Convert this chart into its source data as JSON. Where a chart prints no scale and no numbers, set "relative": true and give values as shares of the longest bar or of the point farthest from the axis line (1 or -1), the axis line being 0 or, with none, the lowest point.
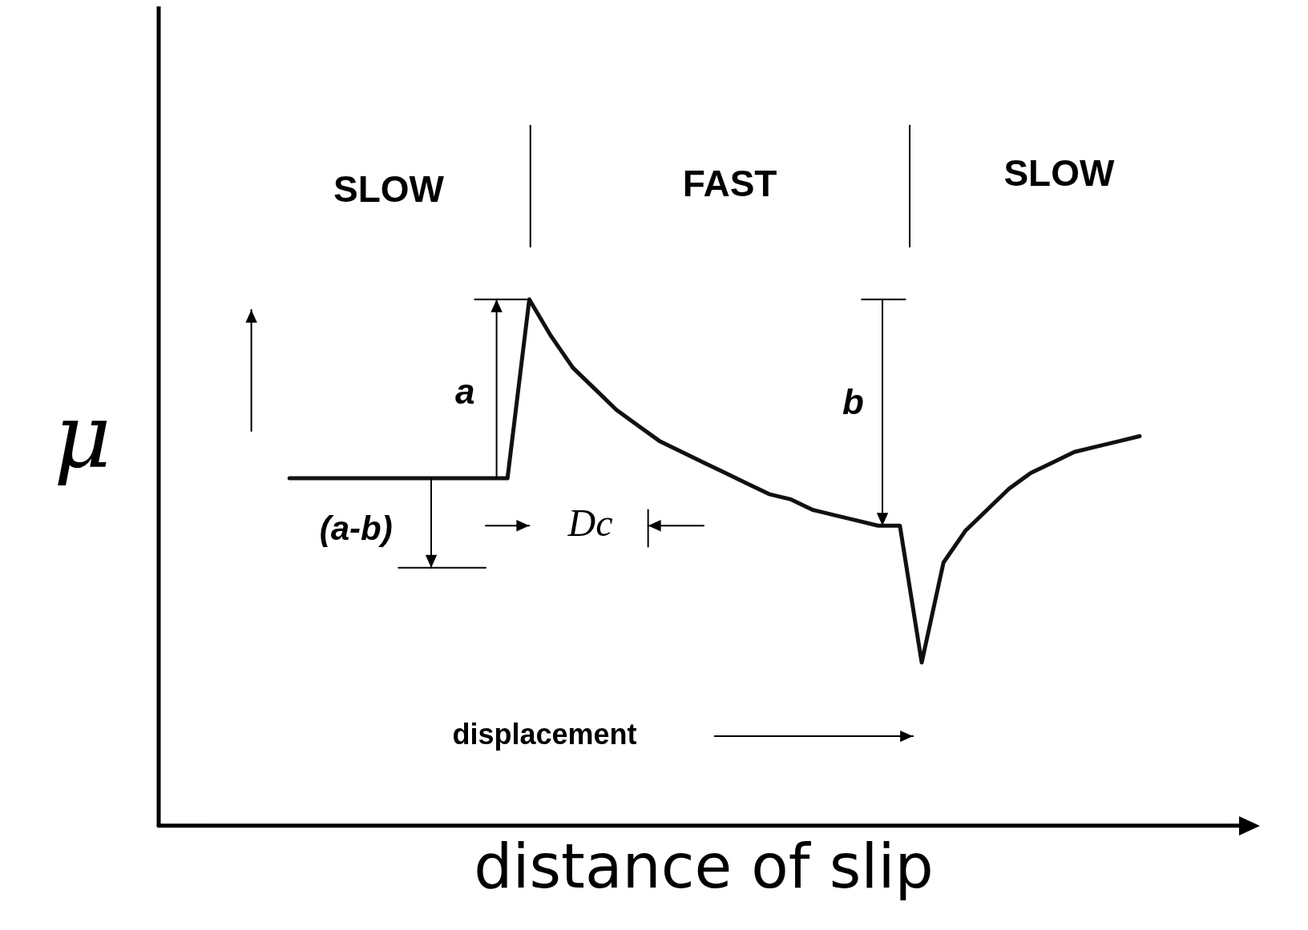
{
  "chart_data": {
    "type": "line",
    "relative": true,
    "xlabel": "distance of slip",
    "ylabel": "μ",
    "tick_labels": false,
    "grid": false,
    "legend": false,
    "marker": "none",
    "line_style": "solid",
    "categories": [
      null,
      null,
      null,
      null,
      null,
      null,
      null,
      null,
      null,
      null,
      null,
      null,
      null,
      null,
      null,
      null,
      null,
      null,
      null,
      null,
      null,
      null,
      null,
      null,
      null,
      null,
      null,
      null,
      null,
      null,
      null,
      null,
      null,
      null,
      null,
      null,
      null,
      null,
      null,
      null,
      null,
      null,
      null,
      null,
      null,
      null,
      null,
      null,
      null,
      null,
      null
    ],
    "series": [
      {
        "color": "#111111",
        "values": [
          null,
          null,
          null,
          null,
          null,
          null,
          0.66,
          0.66,
          0.66,
          0.66,
          0.66,
          0.66,
          0.66,
          0.66,
          0.66,
          0.66,
          0.66,
          1.0,
          0.93,
          0.87,
          0.83,
          0.79,
          0.76,
          0.73,
          0.71,
          0.69,
          0.67,
          0.65,
          0.63,
          0.62,
          0.6,
          0.59,
          0.58,
          0.57,
          0.57,
          0.31,
          0.5,
          0.56,
          0.6,
          0.64,
          0.67,
          0.69,
          0.71,
          0.72,
          0.73,
          0.74,
          null,
          null,
          null,
          null,
          null
        ]
      }
    ],
    "annotations": [
      "SLOW",
      "FAST",
      "SLOW",
      "a",
      "b",
      "(a-b)",
      "Dc",
      "displacement"
    ]
  }
}
